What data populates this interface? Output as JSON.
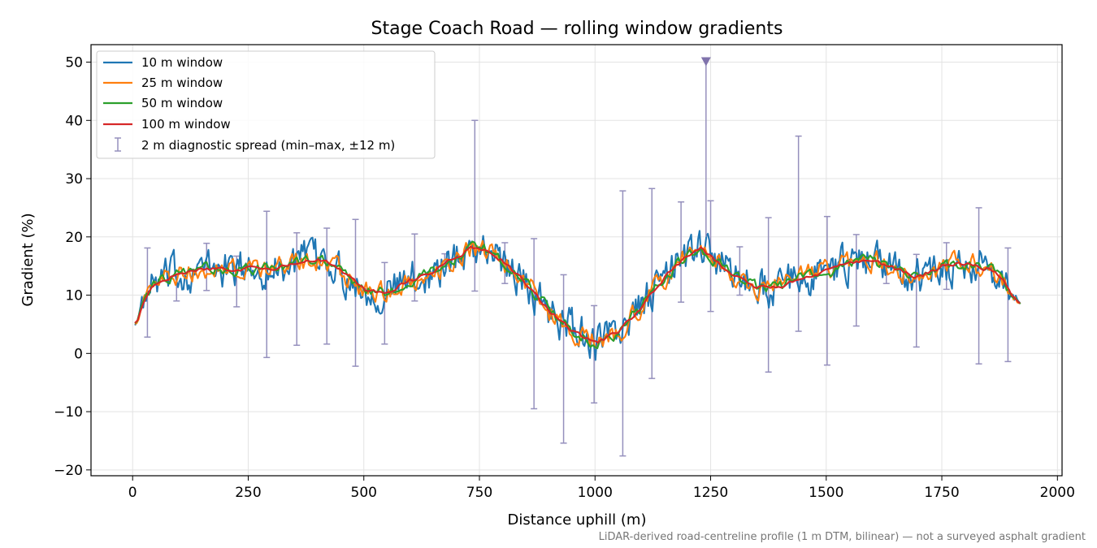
{
  "chart_data": {
    "type": "line",
    "title": "Stage Coach Road — rolling window gradients",
    "xlabel": "Distance uphill (m)",
    "ylabel": "Gradient (%)",
    "footnote": "LiDAR-derived road-centreline profile (1 m DTM, bilinear) — not a surveyed asphalt gradient",
    "xlim": [
      -90,
      2010
    ],
    "ylim": [
      -21,
      53
    ],
    "xticks": [
      0,
      250,
      500,
      750,
      1000,
      1250,
      1500,
      1750,
      2000
    ],
    "xtick_labels": [
      "0",
      "250",
      "500",
      "750",
      "1000",
      "1250",
      "1500",
      "1750",
      "2000"
    ],
    "yticks": [
      -20,
      -10,
      0,
      10,
      20,
      30,
      40,
      50
    ],
    "ytick_labels": [
      "−20",
      "−10",
      "0",
      "10",
      "20",
      "30",
      "40",
      "50"
    ],
    "grid": true,
    "legend_position": "top-left",
    "trend": {
      "x": [
        0,
        10,
        20,
        40,
        60,
        100,
        150,
        200,
        250,
        300,
        350,
        400,
        430,
        460,
        500,
        550,
        600,
        650,
        700,
        730,
        760,
        800,
        850,
        900,
        950,
        1000,
        1050,
        1100,
        1150,
        1200,
        1230,
        1260,
        1300,
        1350,
        1400,
        1450,
        1500,
        1550,
        1600,
        1650,
        1700,
        1750,
        1800,
        1850,
        1880,
        1900,
        1920
      ],
      "y": [
        5,
        5.5,
        8,
        11,
        12.5,
        13.5,
        14.5,
        14.5,
        14.5,
        14.5,
        15.5,
        16,
        15.5,
        13.5,
        11,
        10.5,
        12.5,
        14,
        16.5,
        18,
        18,
        16,
        12,
        7.5,
        4,
        1.8,
        3.5,
        8,
        13,
        17,
        18,
        16,
        13.5,
        11.5,
        11.5,
        13,
        14,
        15.5,
        16,
        14.5,
        13,
        15,
        15.5,
        14.5,
        13,
        10,
        8.5
      ]
    },
    "series": [
      {
        "name": "10 m window",
        "color": "#1f77b4",
        "noise": 3.2,
        "step": 3
      },
      {
        "name": "25 m window",
        "color": "#ff7f0e",
        "noise": 1.8,
        "step": 4
      },
      {
        "name": "50 m window",
        "color": "#2ca02c",
        "noise": 1.0,
        "step": 5
      },
      {
        "name": "100 m window",
        "color": "#d62728",
        "noise": 0.35,
        "step": 6
      }
    ],
    "spread": {
      "name": "2 m diagnostic spread (min–max, ±12 m)",
      "color": "#9590bd",
      "x": [
        32,
        95,
        160,
        225,
        290,
        355,
        420,
        482,
        545,
        610,
        675,
        740,
        805,
        868,
        932,
        998,
        1060,
        1123,
        1186,
        1250,
        1313,
        1375,
        1440,
        1502,
        1565,
        1630,
        1695,
        1760,
        1830,
        1893
      ],
      "min": [
        2.8,
        9,
        10.8,
        8,
        -0.7,
        1.4,
        1.6,
        -2.2,
        1.6,
        9,
        15,
        10.7,
        12,
        -9.5,
        -15.4,
        -8.5,
        -17.6,
        -4.3,
        8.8,
        7.2,
        10,
        -3.2,
        3.8,
        -2,
        4.7,
        12,
        1.1,
        11,
        -1.8,
        -1.4
      ],
      "max": [
        18.1,
        13.5,
        18.9,
        16.7,
        24.4,
        20.7,
        21.5,
        23,
        15.6,
        20.5,
        17.1,
        40,
        19,
        19.7,
        13.5,
        8.2,
        27.9,
        28.3,
        26,
        26.2,
        18.3,
        23.3,
        37.3,
        23.5,
        20.4,
        15.4,
        17,
        19,
        25,
        18.1
      ]
    },
    "peak_marker": {
      "x": 1240,
      "y": 50,
      "color": "#8073ac"
    }
  }
}
